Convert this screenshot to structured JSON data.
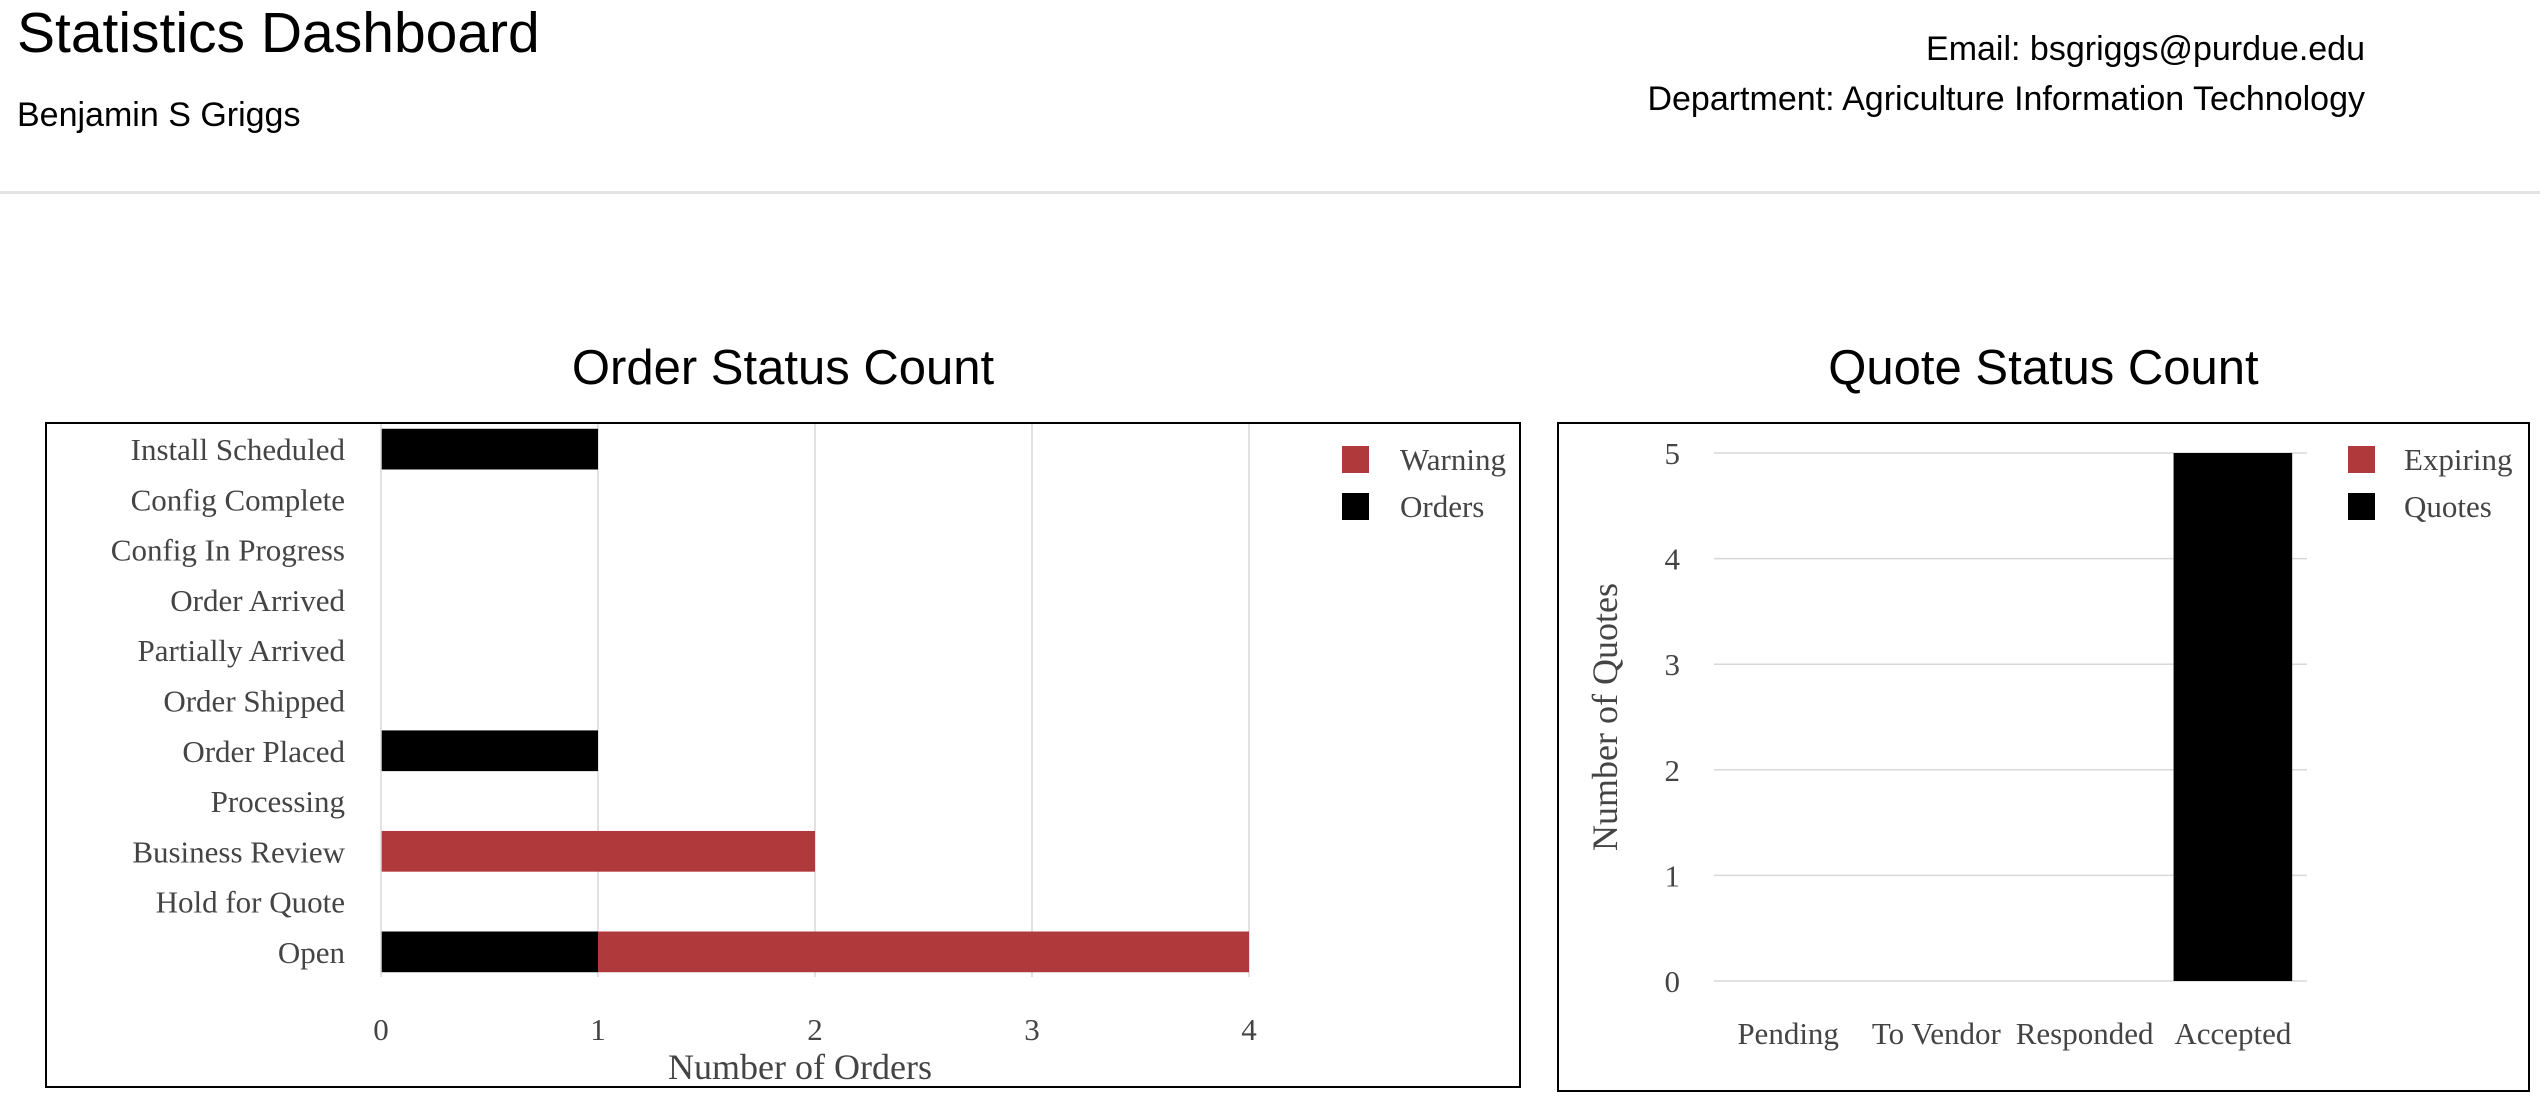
{
  "header": {
    "title": "Statistics Dashboard",
    "user_name": "Benjamin S Griggs",
    "email_line": "Email: bsgriggs@purdue.edu",
    "department_line": "Department: Agriculture Information Technology"
  },
  "charts": {
    "order_title": "Order Status Count",
    "quote_title": "Quote Status Count"
  },
  "colors": {
    "warning": "#b0393b",
    "orders": "#000000",
    "grid": "#d9d9d9"
  },
  "chart_data": [
    {
      "type": "bar",
      "orientation": "horizontal",
      "stacked": true,
      "title": "Order Status Count",
      "xlabel": "Number of Orders",
      "ylabel": "",
      "categories": [
        "Install Scheduled",
        "Config Complete",
        "Config In Progress",
        "Order Arrived",
        "Partially Arrived",
        "Order Shipped",
        "Order Placed",
        "Processing",
        "Business Review",
        "Hold for Quote",
        "Open"
      ],
      "series": [
        {
          "name": "Orders",
          "color": "#000000",
          "values": [
            1,
            0,
            0,
            0,
            0,
            0,
            1,
            0,
            0,
            0,
            1
          ]
        },
        {
          "name": "Warning",
          "color": "#b0393b",
          "values": [
            0,
            0,
            0,
            0,
            0,
            0,
            0,
            0,
            2,
            0,
            3
          ]
        }
      ],
      "legend_order": [
        "Warning",
        "Orders"
      ],
      "xlim": [
        0,
        4
      ],
      "xticks": [
        0,
        1,
        2,
        3,
        4
      ],
      "grid": true,
      "legend_position": "top-right"
    },
    {
      "type": "bar",
      "orientation": "vertical",
      "stacked": true,
      "title": "Quote Status Count",
      "xlabel": "",
      "ylabel": "Number of Quotes",
      "categories": [
        "Pending",
        "To Vendor",
        "Responded",
        "Accepted"
      ],
      "series": [
        {
          "name": "Quotes",
          "color": "#000000",
          "values": [
            0,
            0,
            0,
            5
          ]
        },
        {
          "name": "Expiring",
          "color": "#b0393b",
          "values": [
            0,
            0,
            0,
            0
          ]
        }
      ],
      "legend_order": [
        "Expiring",
        "Quotes"
      ],
      "ylim": [
        0,
        5
      ],
      "yticks": [
        0,
        1,
        2,
        3,
        4,
        5
      ],
      "grid": true,
      "legend_position": "top-right"
    }
  ]
}
